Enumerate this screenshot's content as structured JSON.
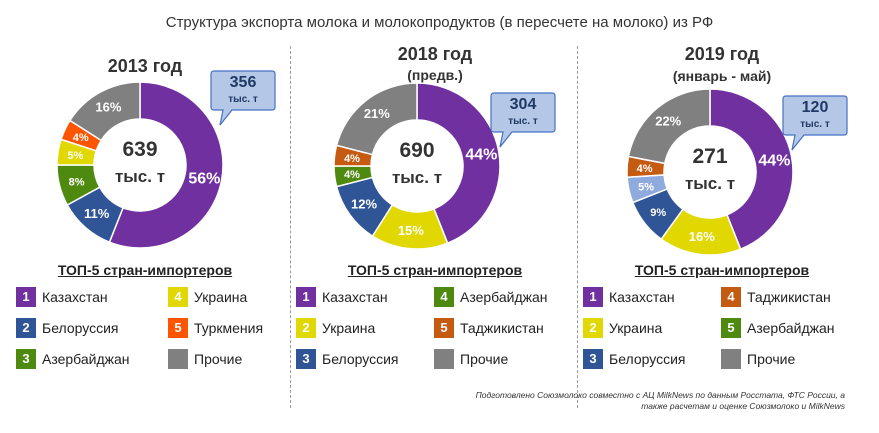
{
  "title": "Структура экспорта молока и молокопродуктов (в пересчете на молоко) из РФ",
  "top5_label": "ТОП-5 стран-импортеров",
  "footer_line1": "Подготовлено Союзмолоко совместно с АЦ MilkNews по данным Росстата, ФТС России, а",
  "footer_line2": "также расчетам и оценке Союзмолоко и MilkNews",
  "colors": {
    "Казахстан": "#7030a0",
    "Белоруссия": "#2f5597",
    "Азербайджан": "#4f8a10",
    "Украина": "#e0d800",
    "Туркмения": "#ff5500",
    "Таджикистан": "#c55a11",
    "Прочие": "#808080",
    "Белоруссия_light": "#8faadc"
  },
  "chart_data": [
    {
      "type": "pie",
      "title": "2013 год",
      "subtitle": "",
      "total_value": "639",
      "total_unit": "тыс. т",
      "callout_value": "356",
      "callout_unit": "тыс. т",
      "slices": [
        {
          "name": "Казахстан",
          "value": 56,
          "label": "56%",
          "color": "#7030a0"
        },
        {
          "name": "Белоруссия",
          "value": 11,
          "label": "11%",
          "color": "#2f5597"
        },
        {
          "name": "Азербайджан",
          "value": 8,
          "label": "8%",
          "color": "#4f8a10"
        },
        {
          "name": "Украина",
          "value": 5,
          "label": "5%",
          "color": "#e0d800"
        },
        {
          "name": "Туркмения",
          "value": 4,
          "label": "4%",
          "color": "#ff5500"
        },
        {
          "name": "Прочие",
          "value": 16,
          "label": "16%",
          "color": "#808080"
        }
      ],
      "legend": [
        {
          "num": "1",
          "name": "Казахстан",
          "color": "#7030a0"
        },
        {
          "num": "4",
          "name": "Украина",
          "color": "#e0d800"
        },
        {
          "num": "2",
          "name": "Белоруссия",
          "color": "#2f5597"
        },
        {
          "num": "5",
          "name": "Туркмения",
          "color": "#ff5500"
        },
        {
          "num": "3",
          "name": "Азербайджан",
          "color": "#4f8a10"
        },
        {
          "num": "",
          "name": "Прочие",
          "color": "#808080"
        }
      ]
    },
    {
      "type": "pie",
      "title": "2018 год",
      "subtitle": "(предв.)",
      "total_value": "690",
      "total_unit": "тыс. т",
      "callout_value": "304",
      "callout_unit": "тыс. т",
      "slices": [
        {
          "name": "Казахстан",
          "value": 44,
          "label": "44%",
          "color": "#7030a0"
        },
        {
          "name": "Украина",
          "value": 15,
          "label": "15%",
          "color": "#e0d800"
        },
        {
          "name": "Белоруссия",
          "value": 12,
          "label": "12%",
          "color": "#2f5597"
        },
        {
          "name": "Азербайджан",
          "value": 4,
          "label": "4%",
          "color": "#4f8a10"
        },
        {
          "name": "Таджикистан",
          "value": 4,
          "label": "4%",
          "color": "#c55a11"
        },
        {
          "name": "Прочие",
          "value": 21,
          "label": "21%",
          "color": "#808080"
        }
      ],
      "legend": [
        {
          "num": "1",
          "name": "Казахстан",
          "color": "#7030a0"
        },
        {
          "num": "4",
          "name": "Азербайджан",
          "color": "#4f8a10"
        },
        {
          "num": "2",
          "name": "Украина",
          "color": "#e0d800"
        },
        {
          "num": "5",
          "name": "Таджикистан",
          "color": "#c55a11"
        },
        {
          "num": "3",
          "name": "Белоруссия",
          "color": "#2f5597"
        },
        {
          "num": "",
          "name": "Прочие",
          "color": "#808080"
        }
      ]
    },
    {
      "type": "pie",
      "title": "2019 год",
      "subtitle": "(январь - май)",
      "total_value": "271",
      "total_unit": "тыс. т",
      "callout_value": "120",
      "callout_unit": "тыс. т",
      "slices": [
        {
          "name": "Казахстан",
          "value": 44,
          "label": "44%",
          "color": "#7030a0"
        },
        {
          "name": "Украина",
          "value": 16,
          "label": "16%",
          "color": "#e0d800"
        },
        {
          "name": "Белоруссия",
          "value": 9,
          "label": "9%",
          "color": "#2f5597"
        },
        {
          "name": "Азербайджан",
          "value": 5,
          "label": "5%",
          "color": "#8faadc"
        },
        {
          "name": "Таджикистан",
          "value": 4,
          "label": "4%",
          "color": "#c55a11"
        },
        {
          "name": "Прочие",
          "value": 22,
          "label": "22%",
          "color": "#808080"
        }
      ],
      "legend": [
        {
          "num": "1",
          "name": "Казахстан",
          "color": "#7030a0"
        },
        {
          "num": "4",
          "name": "Таджикистан",
          "color": "#c55a11"
        },
        {
          "num": "2",
          "name": "Украина",
          "color": "#e0d800"
        },
        {
          "num": "5",
          "name": "Азербайджан",
          "color": "#4f8a10"
        },
        {
          "num": "3",
          "name": "Белоруссия",
          "color": "#2f5597"
        },
        {
          "num": "",
          "name": "Прочие",
          "color": "#808080"
        }
      ]
    }
  ]
}
